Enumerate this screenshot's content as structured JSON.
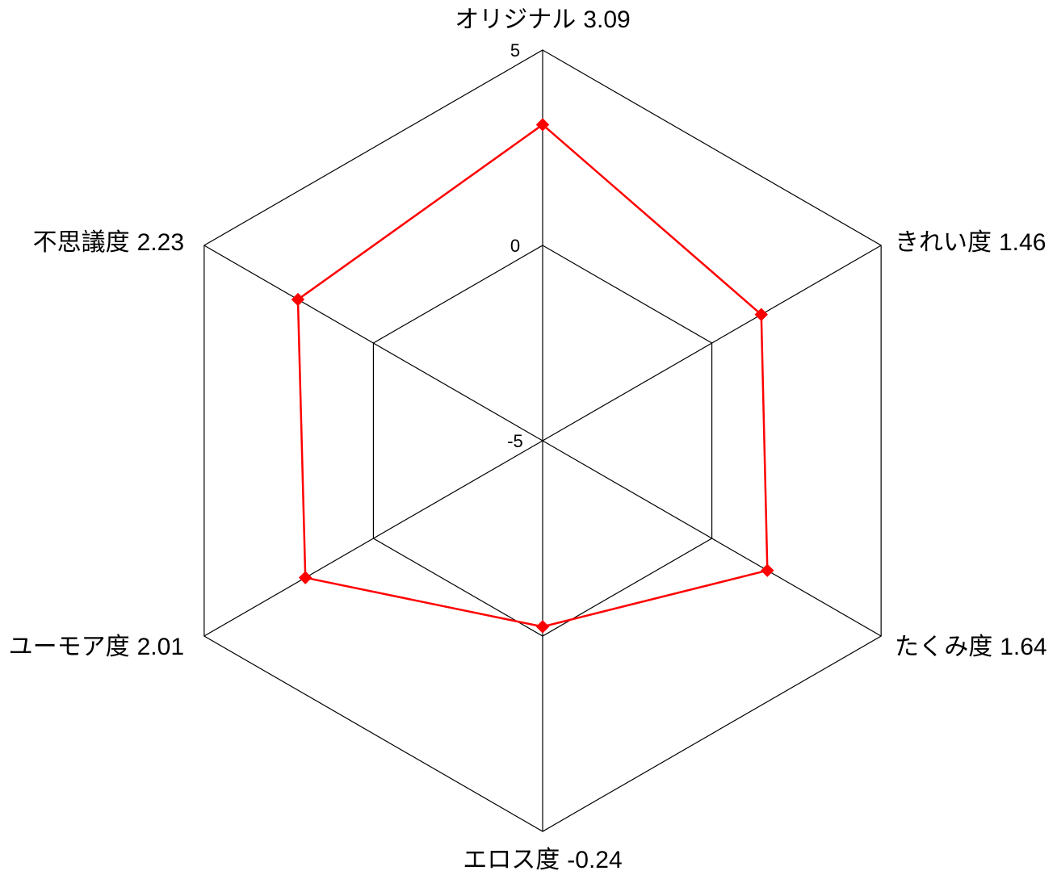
{
  "chart_data": {
    "type": "radar",
    "title": "",
    "axes": [
      {
        "name": "オリジナル",
        "value_label": "3.09"
      },
      {
        "name": "きれい度",
        "value_label": "1.46"
      },
      {
        "name": "たくみ度",
        "value_label": "1.64"
      },
      {
        "name": "エロス度",
        "value_label": "-0.24"
      },
      {
        "name": "ユーモア度",
        "value_label": "2.01"
      },
      {
        "name": "不思議度",
        "value_label": "2.23"
      }
    ],
    "series": [
      {
        "values": [
          3.09,
          1.46,
          1.64,
          -0.24,
          2.01,
          2.23
        ]
      }
    ],
    "range": [
      -5,
      5
    ],
    "ticks": [
      {
        "value": -5,
        "label": "-5"
      },
      {
        "value": 0,
        "label": "0"
      },
      {
        "value": 5,
        "label": "5"
      }
    ],
    "grid": true,
    "legend": "none",
    "colors": {
      "series": "#ff0000",
      "grid": "#000000"
    },
    "marker": "diamond"
  }
}
